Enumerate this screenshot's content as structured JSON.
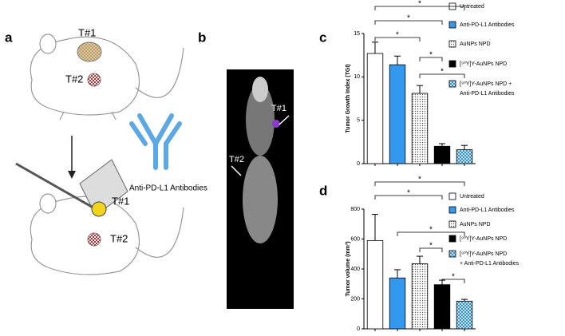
{
  "panels": {
    "a": "a",
    "b": "b",
    "c": "c",
    "d": "d"
  },
  "illustration": {
    "tumor1_top": "T#1",
    "tumor2_top": "T#2",
    "tumor1_bottom": "T#1",
    "tumor2_bottom": "T#2",
    "antibody": "Anti-PD-L1 Antibodies",
    "scan_t1": "T#1",
    "scan_t2": "T#2"
  },
  "chart_data": [
    {
      "type": "bar",
      "ylabel": "Tumor Growth Index (TGI)",
      "categories": [
        [
          "Untreated"
        ],
        [
          "Anti-PD-L1 Antibodies"
        ],
        [
          "AuNPs NPD"
        ],
        [
          "[⁹⁰Y]Y-AuNPs NPD"
        ],
        [
          "[⁹⁰Y]Y-AuNPs NPD +",
          "Anti-PD-L1 Antibodies"
        ]
      ],
      "values": [
        12.7,
        11.4,
        8.1,
        2.0,
        1.6
      ],
      "errors": [
        1.3,
        1.0,
        0.9,
        0.3,
        0.5
      ],
      "colors": [
        "#ffffff",
        "#3399ee",
        "url(#dots)",
        "#000000",
        "url(#check)"
      ],
      "ylim": [
        0,
        15
      ],
      "yticks": [
        0,
        5,
        10,
        15
      ],
      "brackets": [
        {
          "from": 0,
          "to": 4,
          "label": "*"
        },
        {
          "from": 0,
          "to": 3,
          "label": "*"
        },
        {
          "from": 0,
          "to": 2,
          "label": "*"
        },
        {
          "from": 2,
          "to": 3,
          "label": "*"
        },
        {
          "from": 2,
          "to": 4,
          "label": "*"
        }
      ]
    },
    {
      "type": "bar",
      "ylabel": "Tumor volume (mm³)",
      "categories": [
        [
          "Untreated"
        ],
        [
          "Anti-PD-L1 Antibodies"
        ],
        [
          "AuNPs NPD"
        ],
        [
          "[⁹⁰Y]Y-AuNPs NPD"
        ],
        [
          "[⁹⁰Y]Y-AuNPs NPD",
          "+ Anti-PD-L1 Antibodies"
        ]
      ],
      "values": [
        590,
        340,
        435,
        295,
        185
      ],
      "errors": [
        175,
        55,
        50,
        30,
        12
      ],
      "colors": [
        "#ffffff",
        "#3399ee",
        "url(#dots)",
        "#000000",
        "url(#check)"
      ],
      "ylim": [
        0,
        800
      ],
      "yticks": [
        0,
        200,
        400,
        600,
        800
      ],
      "brackets": [
        {
          "from": 0,
          "to": 4,
          "label": "*"
        },
        {
          "from": 0,
          "to": 3,
          "label": "*"
        },
        {
          "from": 1,
          "to": 4,
          "label": "*"
        },
        {
          "from": 2,
          "to": 3,
          "label": "*"
        },
        {
          "from": 3,
          "to": 4,
          "label": "*"
        }
      ]
    }
  ]
}
